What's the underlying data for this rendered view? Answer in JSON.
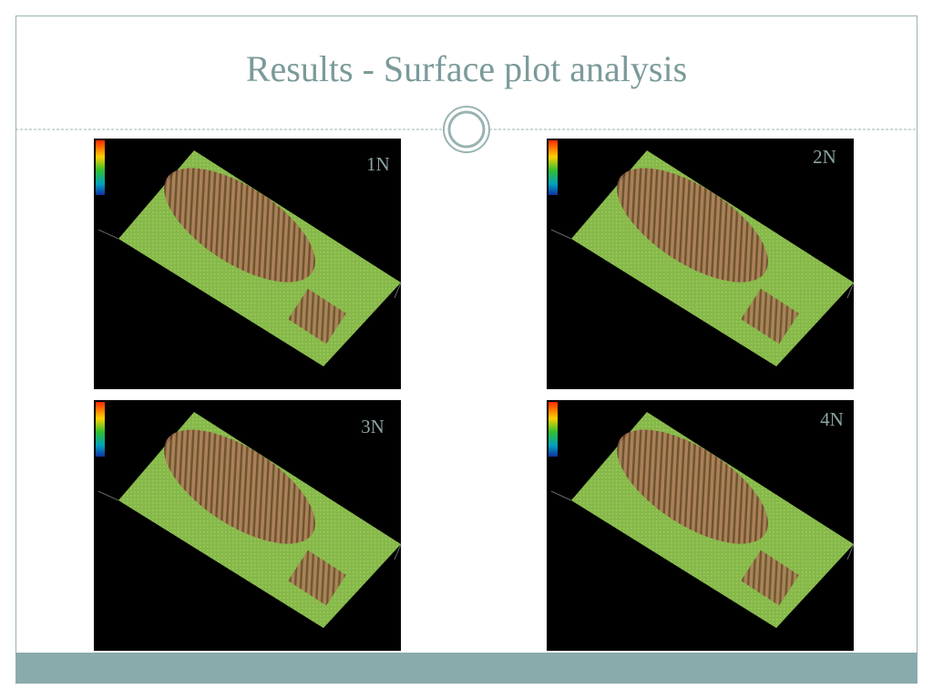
{
  "title": "Results - Surface plot analysis",
  "panels": [
    {
      "label": "1N"
    },
    {
      "label": "2N"
    },
    {
      "label": "3N"
    },
    {
      "label": "4N"
    }
  ]
}
